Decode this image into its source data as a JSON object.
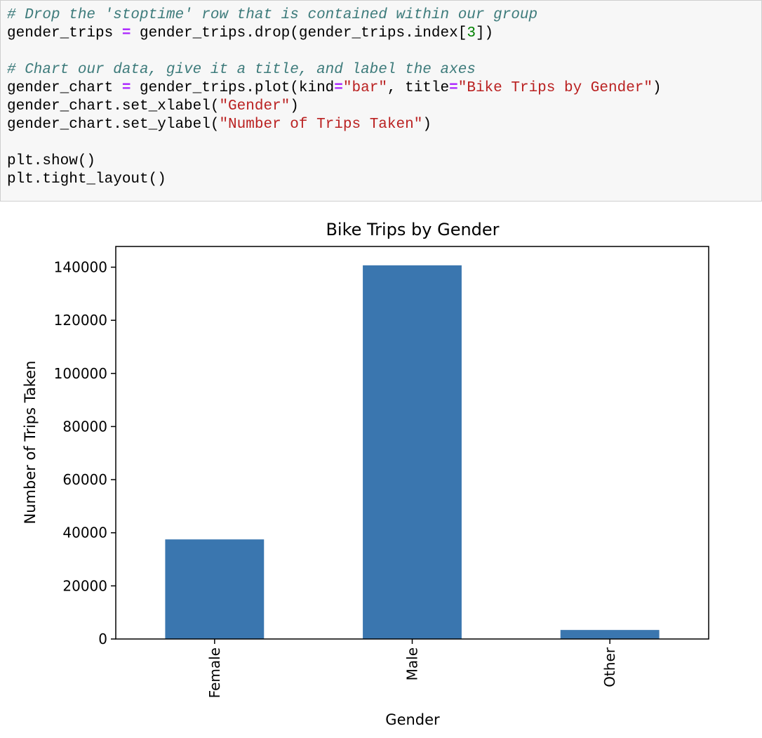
{
  "code_cell": {
    "lines": [
      [
        {
          "t": "comment",
          "v": "# Drop the 'stoptime' row that is contained within our group"
        }
      ],
      [
        {
          "t": "plain",
          "v": "gender_trips "
        },
        {
          "t": "op",
          "v": "="
        },
        {
          "t": "plain",
          "v": " gender_trips.drop(gender_trips.index["
        },
        {
          "t": "num",
          "v": "3"
        },
        {
          "t": "plain",
          "v": "])"
        }
      ],
      [],
      [
        {
          "t": "comment",
          "v": "# Chart our data, give it a title, and label the axes"
        }
      ],
      [
        {
          "t": "plain",
          "v": "gender_chart "
        },
        {
          "t": "op",
          "v": "="
        },
        {
          "t": "plain",
          "v": " gender_trips.plot(kind"
        },
        {
          "t": "op",
          "v": "="
        },
        {
          "t": "str",
          "v": "\"bar\""
        },
        {
          "t": "plain",
          "v": ", title"
        },
        {
          "t": "op",
          "v": "="
        },
        {
          "t": "str",
          "v": "\"Bike Trips by Gender\""
        },
        {
          "t": "plain",
          "v": ")"
        }
      ],
      [
        {
          "t": "plain",
          "v": "gender_chart.set_xlabel("
        },
        {
          "t": "str",
          "v": "\"Gender\""
        },
        {
          "t": "plain",
          "v": ")"
        }
      ],
      [
        {
          "t": "plain",
          "v": "gender_chart.set_ylabel("
        },
        {
          "t": "str",
          "v": "\"Number of Trips Taken\""
        },
        {
          "t": "plain",
          "v": ")"
        }
      ],
      [],
      [
        {
          "t": "plain",
          "v": "plt.show()"
        }
      ],
      [
        {
          "t": "plain",
          "v": "plt.tight_layout()"
        }
      ]
    ]
  },
  "colors": {
    "bar": "#3a76af",
    "comment": "#3d7b7b",
    "operator": "#aa22ff",
    "string": "#ba2121",
    "number": "#008000",
    "cell_background": "#f7f7f7"
  },
  "chart_data": {
    "type": "bar",
    "title": "Bike Trips by Gender",
    "xlabel": "Gender",
    "ylabel": "Number of Trips Taken",
    "categories": [
      "Female",
      "Male",
      "Other"
    ],
    "values": [
      37500,
      140700,
      3400
    ],
    "ylim": [
      0,
      147800
    ],
    "yticks": [
      0,
      20000,
      40000,
      60000,
      80000,
      100000,
      120000,
      140000
    ],
    "x_tick_rotation": "vertical",
    "grid": false,
    "legend": "none"
  }
}
